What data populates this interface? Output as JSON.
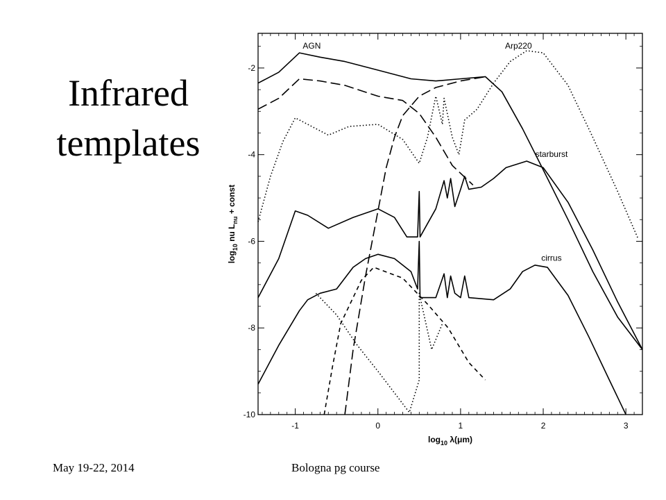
{
  "slide": {
    "title_line1": "Infrared",
    "title_line2": "templates",
    "footer_date": "May 19-22, 2014",
    "footer_course": "Bologna pg course"
  },
  "chart_data": {
    "type": "line",
    "xlabel": "log10 λ(μm)",
    "ylabel": "log10 nu Lnu + const",
    "xlim": [
      -1.45,
      3.2
    ],
    "ylim": [
      -10,
      -1.2
    ],
    "xticks": [
      -1,
      0,
      1,
      2,
      3
    ],
    "yticks": [
      -10,
      -8,
      -6,
      -4,
      -2
    ],
    "xtick_labels": [
      "-1",
      "0",
      "1",
      "2",
      "3"
    ],
    "ytick_labels": [
      "-10",
      "-8",
      "-6",
      "-4",
      "-2"
    ],
    "annotations": [
      {
        "text": "AGN",
        "x": -0.8,
        "y": -1.55
      },
      {
        "text": "Arp220",
        "x": 1.7,
        "y": -1.55
      },
      {
        "text": "starburst",
        "x": 2.1,
        "y": -4.05
      },
      {
        "text": "cirrus",
        "x": 2.1,
        "y": -6.45
      }
    ],
    "series": [
      {
        "style": "solid",
        "points": [
          [
            -1.45,
            -2.35
          ],
          [
            -1.2,
            -2.1
          ],
          [
            -0.95,
            -1.65
          ],
          [
            -0.7,
            -1.75
          ],
          [
            -0.4,
            -1.85
          ],
          [
            0,
            -2.05
          ],
          [
            0.4,
            -2.25
          ],
          [
            0.7,
            -2.3
          ],
          [
            1,
            -2.25
          ],
          [
            1.3,
            -2.2
          ],
          [
            1.5,
            -2.55
          ],
          [
            1.75,
            -3.4
          ],
          [
            2,
            -4.35
          ],
          [
            2.3,
            -5.5
          ],
          [
            2.6,
            -6.7
          ],
          [
            2.9,
            -7.75
          ],
          [
            3.2,
            -8.5
          ]
        ]
      },
      {
        "style": "longdash",
        "points": [
          [
            -1.45,
            -2.95
          ],
          [
            -1.2,
            -2.7
          ],
          [
            -0.95,
            -2.25
          ],
          [
            -0.7,
            -2.3
          ],
          [
            -0.4,
            -2.4
          ],
          [
            0,
            -2.65
          ],
          [
            0.3,
            -2.75
          ],
          [
            0.5,
            -3.05
          ],
          [
            0.7,
            -3.6
          ],
          [
            0.9,
            -4.25
          ],
          [
            1.15,
            -4.7
          ]
        ]
      },
      {
        "style": "dotted",
        "points": [
          [
            -1.45,
            -5.55
          ],
          [
            -1.3,
            -4.5
          ],
          [
            -1.15,
            -3.7
          ],
          [
            -1,
            -3.15
          ],
          [
            -0.85,
            -3.3
          ],
          [
            -0.6,
            -3.55
          ],
          [
            -0.35,
            -3.35
          ],
          [
            0,
            -3.3
          ],
          [
            0.3,
            -3.65
          ],
          [
            0.5,
            -4.2
          ],
          [
            0.6,
            -3.6
          ],
          [
            0.7,
            -2.65
          ],
          [
            0.78,
            -3.3
          ],
          [
            0.8,
            -2.7
          ],
          [
            0.9,
            -3.6
          ],
          [
            0.98,
            -4.0
          ],
          [
            1.05,
            -3.2
          ],
          [
            1.2,
            -2.95
          ],
          [
            1.4,
            -2.35
          ],
          [
            1.6,
            -1.85
          ],
          [
            1.8,
            -1.6
          ],
          [
            2,
            -1.65
          ],
          [
            2.3,
            -2.4
          ],
          [
            2.6,
            -3.6
          ],
          [
            2.9,
            -4.85
          ],
          [
            3.15,
            -5.95
          ]
        ]
      },
      {
        "style": "solid",
        "points": [
          [
            -1.45,
            -7.3
          ],
          [
            -1.2,
            -6.4
          ],
          [
            -1,
            -5.3
          ],
          [
            -0.85,
            -5.4
          ],
          [
            -0.6,
            -5.7
          ],
          [
            -0.3,
            -5.45
          ],
          [
            0,
            -5.25
          ],
          [
            0.2,
            -5.45
          ],
          [
            0.35,
            -5.9
          ],
          [
            0.48,
            -5.9
          ],
          [
            0.5,
            -4.85
          ],
          [
            0.51,
            -5.9
          ],
          [
            0.7,
            -5.25
          ],
          [
            0.8,
            -4.6
          ],
          [
            0.84,
            -5.0
          ],
          [
            0.88,
            -4.55
          ],
          [
            0.93,
            -5.2
          ],
          [
            1,
            -4.8
          ],
          [
            1.05,
            -4.5
          ],
          [
            1.1,
            -4.8
          ],
          [
            1.25,
            -4.75
          ],
          [
            1.4,
            -4.55
          ],
          [
            1.55,
            -4.3
          ],
          [
            1.8,
            -4.15
          ],
          [
            2,
            -4.3
          ],
          [
            2.3,
            -5.1
          ],
          [
            2.6,
            -6.2
          ],
          [
            2.9,
            -7.4
          ],
          [
            3.2,
            -8.5
          ]
        ]
      },
      {
        "style": "solid",
        "points": [
          [
            -1.45,
            -9.3
          ],
          [
            -1.2,
            -8.4
          ],
          [
            -0.95,
            -7.6
          ],
          [
            -0.85,
            -7.35
          ],
          [
            -0.7,
            -7.2
          ],
          [
            -0.5,
            -7.1
          ],
          [
            -0.3,
            -6.6
          ],
          [
            -0.15,
            -6.4
          ],
          [
            0,
            -6.3
          ],
          [
            0.2,
            -6.4
          ],
          [
            0.4,
            -6.7
          ],
          [
            0.48,
            -7.1
          ],
          [
            0.5,
            -6.0
          ],
          [
            0.51,
            -7.3
          ],
          [
            0.7,
            -7.3
          ],
          [
            0.8,
            -6.75
          ],
          [
            0.84,
            -7.3
          ],
          [
            0.88,
            -6.8
          ],
          [
            0.93,
            -7.2
          ],
          [
            1,
            -7.3
          ],
          [
            1.05,
            -6.8
          ],
          [
            1.1,
            -7.3
          ],
          [
            1.4,
            -7.35
          ],
          [
            1.6,
            -7.1
          ],
          [
            1.75,
            -6.7
          ],
          [
            1.9,
            -6.55
          ],
          [
            2.05,
            -6.6
          ],
          [
            2.3,
            -7.25
          ],
          [
            2.55,
            -8.2
          ],
          [
            2.8,
            -9.2
          ],
          [
            3,
            -10
          ]
        ]
      },
      {
        "style": "dotted",
        "points": [
          [
            -0.75,
            -7.2
          ],
          [
            -0.5,
            -7.7
          ],
          [
            -0.25,
            -8.4
          ],
          [
            0,
            -9.0
          ],
          [
            0.2,
            -9.5
          ],
          [
            0.38,
            -9.95
          ],
          [
            0.5,
            -9.2
          ],
          [
            0.5,
            -7.2
          ],
          [
            0.65,
            -8.5
          ],
          [
            0.78,
            -7.9
          ]
        ]
      },
      {
        "style": "shortdash",
        "points": [
          [
            -0.65,
            -10
          ],
          [
            -0.55,
            -8.9
          ],
          [
            -0.45,
            -7.9
          ],
          [
            -0.2,
            -6.9
          ],
          [
            -0.05,
            -6.6
          ],
          [
            0.3,
            -6.85
          ],
          [
            0.6,
            -7.45
          ],
          [
            0.85,
            -8.0
          ],
          [
            1.1,
            -8.8
          ],
          [
            1.3,
            -9.2
          ]
        ]
      },
      {
        "style": "longdash",
        "points": [
          [
            -0.4,
            -10
          ],
          [
            -0.3,
            -8.5
          ],
          [
            -0.15,
            -6.8
          ],
          [
            0,
            -5.3
          ],
          [
            0.1,
            -4.3
          ],
          [
            0.2,
            -3.6
          ],
          [
            0.3,
            -3.1
          ],
          [
            0.5,
            -2.65
          ],
          [
            0.7,
            -2.45
          ],
          [
            1,
            -2.3
          ],
          [
            1.3,
            -2.2
          ]
        ]
      }
    ]
  }
}
